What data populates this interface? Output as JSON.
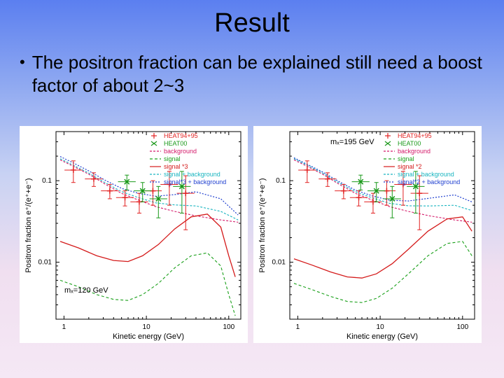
{
  "slide": {
    "title": "Result",
    "bullet": "•",
    "bullet_text": "The positron fraction can be explained still need a boost factor of about 2~3"
  },
  "colors": {
    "bg_top": "#5b7ff0",
    "bg_bottom": "#f5e8f5",
    "chart_bg": "#ffffff",
    "axis": "#000000",
    "heat9495": "#e22222",
    "heat00": "#1a991a",
    "background_curve": "#d41a6a",
    "signal": "#1aa01a",
    "signal_times": "#d41a1a",
    "sig_plus_bg": "#19b5c0",
    "sig_times_plus_bg": "#2040d0"
  },
  "left_chart": {
    "type": "scatter+line",
    "xlabel": "Kinetic energy (GeV)",
    "ylabel": "Positron fraction e⁺/(e⁺+e⁻)",
    "xscale": "log",
    "yscale": "log",
    "xlim": [
      0.8,
      140
    ],
    "ylim": [
      0.002,
      0.4
    ],
    "xticks": [
      1,
      10,
      100
    ],
    "yticks": [
      0.01,
      0.1
    ],
    "annotation": "mₓ=120 GeV",
    "legend_labels": [
      "HEAT94+95",
      "HEAT00",
      "background",
      "signal",
      "signal *3",
      "signal + background",
      "signal*3 + background"
    ],
    "heat9495": {
      "color": "#e22222",
      "marker": "+",
      "points": [
        {
          "x": 1.3,
          "y": 0.135,
          "dy": 0.04
        },
        {
          "x": 2.3,
          "y": 0.105,
          "dy": 0.02
        },
        {
          "x": 3.6,
          "y": 0.075,
          "dy": 0.015
        },
        {
          "x": 5.5,
          "y": 0.062,
          "dy": 0.013
        },
        {
          "x": 8.2,
          "y": 0.055,
          "dy": 0.015
        },
        {
          "x": 12,
          "y": 0.075,
          "dy": 0.025
        },
        {
          "x": 19,
          "y": 0.09,
          "dy": 0.04
        },
        {
          "x": 30,
          "y": 0.07,
          "dy": 0.045
        }
      ]
    },
    "heat00": {
      "color": "#1a991a",
      "marker": "x",
      "points": [
        {
          "x": 5.8,
          "y": 0.097,
          "dy": 0.02
        },
        {
          "x": 9,
          "y": 0.075,
          "dy": 0.02
        },
        {
          "x": 14,
          "y": 0.06,
          "dy": 0.025
        },
        {
          "x": 27,
          "y": 0.085,
          "dy": 0.045
        }
      ]
    },
    "bg_curve": {
      "color": "#d41a6a",
      "dash": "3 2",
      "data": [
        [
          0.9,
          0.18
        ],
        [
          1.3,
          0.15
        ],
        [
          2,
          0.12
        ],
        [
          3.2,
          0.09
        ],
        [
          5,
          0.07
        ],
        [
          8,
          0.058
        ],
        [
          13,
          0.048
        ],
        [
          22,
          0.042
        ],
        [
          40,
          0.037
        ],
        [
          80,
          0.033
        ],
        [
          130,
          0.031
        ]
      ]
    },
    "signal": {
      "color": "#1aa01a",
      "dash": "4 3",
      "data": [
        [
          0.9,
          0.006
        ],
        [
          1.5,
          0.005
        ],
        [
          2.5,
          0.004
        ],
        [
          4,
          0.0035
        ],
        [
          6,
          0.0034
        ],
        [
          9,
          0.004
        ],
        [
          14,
          0.0055
        ],
        [
          22,
          0.0085
        ],
        [
          35,
          0.012
        ],
        [
          55,
          0.013
        ],
        [
          80,
          0.009
        ],
        [
          100,
          0.004
        ],
        [
          120,
          0.0022
        ]
      ]
    },
    "signal3": {
      "color": "#d41a1a",
      "data": [
        [
          0.9,
          0.018
        ],
        [
          1.5,
          0.015
        ],
        [
          2.5,
          0.012
        ],
        [
          4,
          0.0105
        ],
        [
          6,
          0.0102
        ],
        [
          9,
          0.012
        ],
        [
          14,
          0.0165
        ],
        [
          22,
          0.0255
        ],
        [
          35,
          0.036
        ],
        [
          55,
          0.039
        ],
        [
          80,
          0.027
        ],
        [
          100,
          0.012
        ],
        [
          120,
          0.0066
        ]
      ]
    },
    "sig_bg": {
      "color": "#19b5c0",
      "dash": "3 2",
      "data": [
        [
          0.9,
          0.186
        ],
        [
          1.3,
          0.155
        ],
        [
          2,
          0.124
        ],
        [
          3.2,
          0.0935
        ],
        [
          5,
          0.0735
        ],
        [
          8,
          0.062
        ],
        [
          13,
          0.0535
        ],
        [
          22,
          0.0505
        ],
        [
          40,
          0.049
        ],
        [
          80,
          0.042
        ],
        [
          130,
          0.033
        ]
      ]
    },
    "sig3_bg": {
      "color": "#2040d0",
      "dash": "2 2",
      "data": [
        [
          0.9,
          0.198
        ],
        [
          1.3,
          0.165
        ],
        [
          2,
          0.132
        ],
        [
          3.2,
          0.1005
        ],
        [
          5,
          0.0805
        ],
        [
          8,
          0.07
        ],
        [
          13,
          0.0645
        ],
        [
          22,
          0.0675
        ],
        [
          40,
          0.073
        ],
        [
          80,
          0.06
        ],
        [
          130,
          0.038
        ]
      ]
    }
  },
  "right_chart": {
    "type": "scatter+line",
    "xlabel": "Kinetic energy (GeV)",
    "ylabel": "Positron fraction e⁺/(e⁺+e⁻)",
    "xscale": "log",
    "yscale": "log",
    "xlim": [
      0.8,
      140
    ],
    "ylim": [
      0.002,
      0.4
    ],
    "xticks": [
      1,
      10,
      100
    ],
    "yticks": [
      0.01,
      0.1
    ],
    "annotation": "mₓ=195 GeV",
    "legend_labels": [
      "HEAT94+95",
      "HEAT00",
      "background",
      "signal",
      "signal *2",
      "signal + background",
      "signal*2 + background"
    ],
    "heat9495": {
      "color": "#e22222",
      "marker": "+",
      "points": [
        {
          "x": 1.3,
          "y": 0.135,
          "dy": 0.04
        },
        {
          "x": 2.3,
          "y": 0.105,
          "dy": 0.02
        },
        {
          "x": 3.6,
          "y": 0.075,
          "dy": 0.015
        },
        {
          "x": 5.5,
          "y": 0.062,
          "dy": 0.013
        },
        {
          "x": 8.2,
          "y": 0.055,
          "dy": 0.015
        },
        {
          "x": 12,
          "y": 0.075,
          "dy": 0.025
        },
        {
          "x": 19,
          "y": 0.09,
          "dy": 0.04
        },
        {
          "x": 30,
          "y": 0.07,
          "dy": 0.045
        }
      ]
    },
    "heat00": {
      "color": "#1a991a",
      "marker": "x",
      "points": [
        {
          "x": 5.8,
          "y": 0.097,
          "dy": 0.02
        },
        {
          "x": 9,
          "y": 0.075,
          "dy": 0.02
        },
        {
          "x": 14,
          "y": 0.06,
          "dy": 0.025
        },
        {
          "x": 27,
          "y": 0.085,
          "dy": 0.045
        }
      ]
    },
    "bg_curve": {
      "color": "#d41a6a",
      "dash": "3 2",
      "data": [
        [
          0.9,
          0.18
        ],
        [
          1.3,
          0.15
        ],
        [
          2,
          0.12
        ],
        [
          3.2,
          0.09
        ],
        [
          5,
          0.07
        ],
        [
          8,
          0.058
        ],
        [
          13,
          0.048
        ],
        [
          22,
          0.042
        ],
        [
          40,
          0.037
        ],
        [
          80,
          0.033
        ],
        [
          130,
          0.031
        ]
      ]
    },
    "signal": {
      "color": "#1aa01a",
      "dash": "4 3",
      "data": [
        [
          0.9,
          0.0055
        ],
        [
          1.5,
          0.0046
        ],
        [
          2.5,
          0.0038
        ],
        [
          4,
          0.0033
        ],
        [
          6,
          0.0032
        ],
        [
          9,
          0.0036
        ],
        [
          14,
          0.0048
        ],
        [
          22,
          0.0072
        ],
        [
          38,
          0.012
        ],
        [
          65,
          0.017
        ],
        [
          100,
          0.018
        ],
        [
          130,
          0.012
        ]
      ]
    },
    "signal2": {
      "color": "#d41a1a",
      "data": [
        [
          0.9,
          0.011
        ],
        [
          1.5,
          0.0092
        ],
        [
          2.5,
          0.0076
        ],
        [
          4,
          0.0066
        ],
        [
          6,
          0.0064
        ],
        [
          9,
          0.0072
        ],
        [
          14,
          0.0096
        ],
        [
          22,
          0.0144
        ],
        [
          38,
          0.024
        ],
        [
          65,
          0.034
        ],
        [
          100,
          0.036
        ],
        [
          130,
          0.024
        ]
      ]
    },
    "sig_bg": {
      "color": "#19b5c0",
      "dash": "3 2",
      "data": [
        [
          0.9,
          0.186
        ],
        [
          1.3,
          0.155
        ],
        [
          2,
          0.124
        ],
        [
          3.2,
          0.0933
        ],
        [
          5,
          0.0732
        ],
        [
          8,
          0.0616
        ],
        [
          13,
          0.0528
        ],
        [
          22,
          0.0492
        ],
        [
          40,
          0.049
        ],
        [
          80,
          0.05
        ],
        [
          130,
          0.043
        ]
      ]
    },
    "sig2_bg": {
      "color": "#2040d0",
      "dash": "2 2",
      "data": [
        [
          0.9,
          0.191
        ],
        [
          1.3,
          0.159
        ],
        [
          2,
          0.128
        ],
        [
          3.2,
          0.097
        ],
        [
          5,
          0.0766
        ],
        [
          8,
          0.0652
        ],
        [
          13,
          0.0576
        ],
        [
          22,
          0.0564
        ],
        [
          40,
          0.061
        ],
        [
          80,
          0.067
        ],
        [
          130,
          0.055
        ]
      ]
    }
  }
}
